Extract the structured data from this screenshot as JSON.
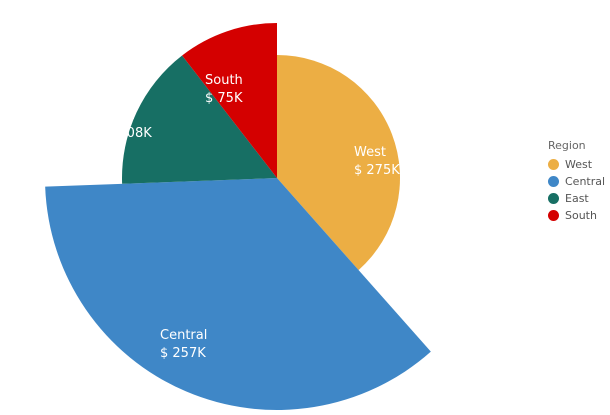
{
  "chart_data": {
    "type": "pie",
    "title": "",
    "legend_title": "Region",
    "legend_position": "right",
    "label_format": "$ {v}K",
    "slices": [
      {
        "name": "West",
        "value": 275,
        "label_value": "$ 275K",
        "color": "#ECAE44",
        "radius_rank": 2
      },
      {
        "name": "Central",
        "value": 257,
        "label_value": "$ 257K",
        "color": "#3F87C7",
        "radius_rank": 4
      },
      {
        "name": "East",
        "value": 108,
        "label_value": "$ 108K",
        "color": "#176F64",
        "radius_rank": 3
      },
      {
        "name": "South",
        "value": 75,
        "label_value": "$ 75K",
        "color": "#D40000",
        "radius_rank": 3
      }
    ]
  }
}
